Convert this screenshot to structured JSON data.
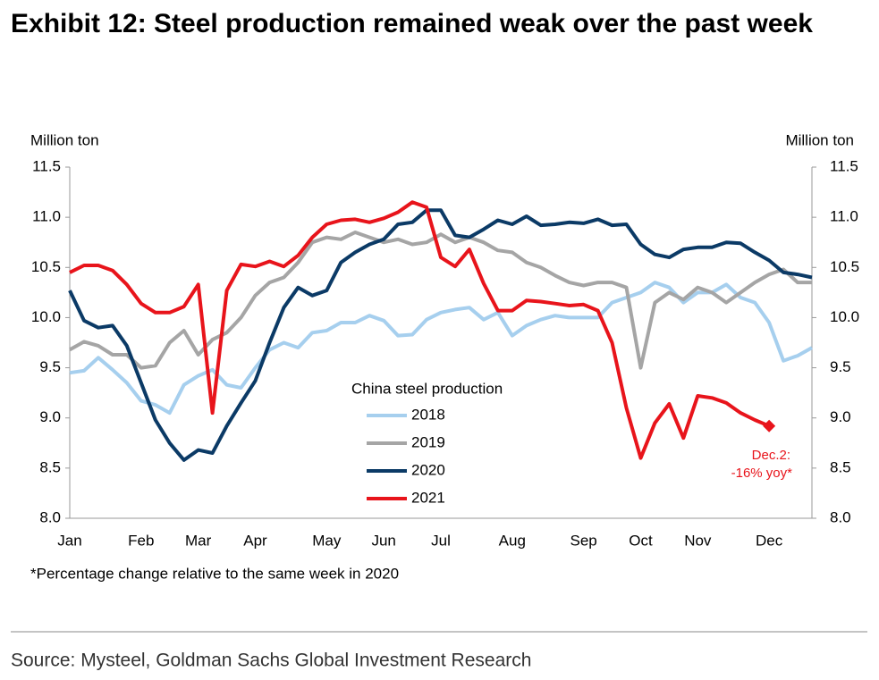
{
  "chart_data": {
    "type": "line",
    "title": "Exhibit 12: Steel production remained weak over the past week",
    "y_label": "Million ton",
    "y2_label": "Million ton",
    "legend_title": "China steel production",
    "categories": [
      "Jan",
      null,
      null,
      null,
      null,
      "Feb",
      null,
      null,
      null,
      "Mar",
      null,
      null,
      null,
      "Apr",
      null,
      null,
      null,
      null,
      "May",
      null,
      null,
      null,
      "Jun",
      null,
      null,
      null,
      "Jul",
      null,
      null,
      null,
      null,
      "Aug",
      null,
      null,
      null,
      null,
      "Sep",
      null,
      null,
      null,
      "Oct",
      null,
      null,
      null,
      "Nov",
      null,
      null,
      null,
      null,
      "Dec",
      null,
      null,
      null
    ],
    "series": [
      {
        "name": "2018",
        "color": "#a6cfee",
        "values": [
          9.45,
          9.47,
          9.6,
          9.48,
          9.35,
          9.17,
          9.13,
          9.05,
          9.33,
          9.42,
          9.48,
          9.33,
          9.3,
          9.5,
          9.68,
          9.75,
          9.7,
          9.85,
          9.87,
          9.95,
          9.95,
          10.02,
          9.97,
          9.82,
          9.83,
          9.98,
          10.05,
          10.08,
          10.1,
          9.98,
          10.05,
          9.82,
          9.92,
          9.98,
          10.02,
          10.0,
          10.0,
          10.0,
          10.15,
          10.2,
          10.25,
          10.35,
          10.3,
          10.15,
          10.25,
          10.25,
          10.33,
          10.2,
          10.15,
          9.95,
          9.57,
          9.62,
          9.7
        ]
      },
      {
        "name": "2019",
        "color": "#a5a5a5",
        "values": [
          9.68,
          9.76,
          9.72,
          9.63,
          9.63,
          9.5,
          9.52,
          9.75,
          9.87,
          9.63,
          9.78,
          9.85,
          10.0,
          10.22,
          10.35,
          10.4,
          10.55,
          10.75,
          10.8,
          10.78,
          10.85,
          10.8,
          10.75,
          10.78,
          10.73,
          10.75,
          10.83,
          10.75,
          10.8,
          10.75,
          10.67,
          10.65,
          10.55,
          10.5,
          10.42,
          10.35,
          10.32,
          10.35,
          10.35,
          10.3,
          9.5,
          10.15,
          10.25,
          10.18,
          10.3,
          10.25,
          10.15,
          10.25,
          10.35,
          10.43,
          10.48,
          10.35,
          10.35
        ]
      },
      {
        "name": "2020",
        "color": "#0b3a66",
        "values": [
          10.27,
          9.97,
          9.9,
          9.92,
          9.72,
          9.35,
          8.98,
          8.75,
          8.58,
          8.68,
          8.65,
          8.92,
          9.15,
          9.37,
          9.75,
          10.1,
          10.3,
          10.22,
          10.27,
          10.55,
          10.65,
          10.73,
          10.78,
          10.93,
          10.95,
          11.07,
          11.07,
          10.82,
          10.8,
          10.88,
          10.97,
          10.93,
          11.01,
          10.92,
          10.93,
          10.95,
          10.94,
          10.98,
          10.92,
          10.93,
          10.73,
          10.63,
          10.6,
          10.68,
          10.7,
          10.7,
          10.75,
          10.74,
          10.65,
          10.57,
          10.45,
          10.43,
          10.4
        ]
      },
      {
        "name": "2021",
        "color": "#e8141b",
        "values": [
          10.45,
          10.52,
          10.52,
          10.47,
          10.33,
          10.14,
          10.05,
          10.05,
          10.11,
          10.33,
          9.05,
          10.27,
          10.53,
          10.51,
          10.56,
          10.51,
          10.62,
          10.8,
          10.93,
          10.97,
          10.98,
          10.95,
          10.99,
          11.05,
          11.15,
          11.1,
          10.6,
          10.51,
          10.68,
          10.34,
          10.07,
          10.07,
          10.17,
          10.16,
          10.14,
          10.12,
          10.13,
          10.07,
          9.75,
          9.1,
          8.6,
          8.95,
          9.14,
          8.8,
          9.22,
          9.2,
          9.15,
          9.05,
          8.98,
          8.92,
          null,
          null,
          null
        ]
      }
    ],
    "annotation": [
      "Dec.2:",
      "-16% yoy*"
    ],
    "ylim": [
      8.0,
      11.5
    ],
    "yticks": [
      {
        "value": 8.0,
        "label": "8.0"
      },
      8.5,
      {
        "value": 9.0,
        "label": "9.0"
      },
      9.5,
      {
        "value": 10.0,
        "label": "10.0"
      },
      10.5,
      {
        "value": 11.0,
        "label": "11.0"
      },
      11.5
    ],
    "y2lim": [
      8.0,
      11.5
    ],
    "y2ticks": [
      {
        "value": 8.0,
        "label": "8.0"
      },
      8.5,
      {
        "value": 9.0,
        "label": "9.0"
      },
      9.5,
      {
        "value": 10.0,
        "label": "10.0"
      },
      10.5,
      {
        "value": 11.0,
        "label": "11.0"
      },
      11.5
    ],
    "footnote": "*Percentage change relative to the same week in 2020",
    "source": "Source: Mysteel, Goldman Sachs Global Investment Research"
  }
}
